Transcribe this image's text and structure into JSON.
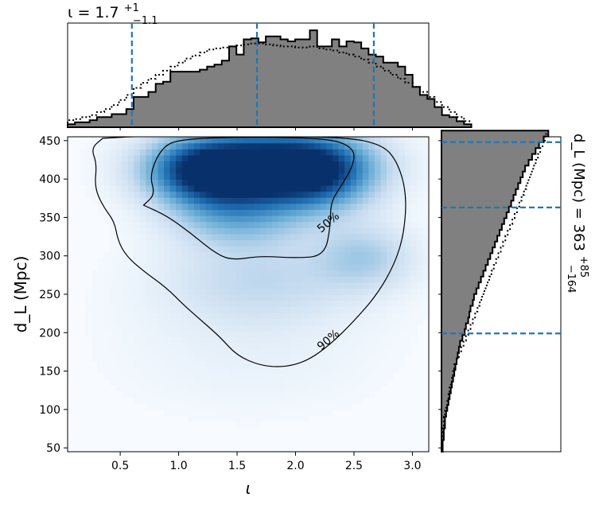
{
  "chart_data": [
    {
      "type": "heatmap",
      "title": "",
      "xlabel": "ι",
      "ylabel": "d_L (Mpc)",
      "xlim": [
        0.05,
        3.14
      ],
      "ylim": [
        45,
        455
      ],
      "x_ticks": [
        0.5,
        1.0,
        1.5,
        2.0,
        2.5,
        3.0
      ],
      "x_tick_labels": [
        "0.5",
        "1.0",
        "1.5",
        "2.0",
        "2.5",
        "3.0"
      ],
      "y_ticks": [
        50,
        100,
        150,
        200,
        250,
        300,
        350,
        400,
        450
      ],
      "y_tick_labels": [
        "50",
        "100",
        "150",
        "200",
        "250",
        "300",
        "350",
        "400",
        "450"
      ],
      "colormap": "Blues",
      "density_peaks": [
        {
          "x": 1.75,
          "y": 420,
          "weight": 1.0,
          "sx": 0.55,
          "sy": 32
        },
        {
          "x": 1.2,
          "y": 410,
          "weight": 0.7,
          "sx": 0.35,
          "sy": 30
        },
        {
          "x": 2.2,
          "y": 405,
          "weight": 0.6,
          "sx": 0.35,
          "sy": 35
        },
        {
          "x": 1.5,
          "y": 355,
          "weight": 0.45,
          "sx": 0.4,
          "sy": 30
        },
        {
          "x": 2.6,
          "y": 300,
          "weight": 0.3,
          "sx": 0.3,
          "sy": 30
        },
        {
          "x": 1.7,
          "y": 270,
          "weight": 0.25,
          "sx": 0.6,
          "sy": 40
        },
        {
          "x": 1.6,
          "y": 180,
          "weight": 0.08,
          "sx": 0.8,
          "sy": 60
        }
      ],
      "contours": [
        {
          "label": "50%",
          "label_at": {
            "x": 2.3,
            "y": 340
          },
          "path": [
            [
              0.7,
              366
            ],
            [
              0.8,
              380
            ],
            [
              0.75,
              405
            ],
            [
              0.85,
              440
            ],
            [
              1.0,
              452
            ],
            [
              1.6,
              455
            ],
            [
              2.3,
              453
            ],
            [
              2.5,
              440
            ],
            [
              2.5,
              420
            ],
            [
              2.4,
              393
            ],
            [
              2.3,
              370
            ],
            [
              2.3,
              340
            ],
            [
              2.25,
              300
            ],
            [
              2.0,
              297
            ],
            [
              1.7,
              300
            ],
            [
              1.45,
              294
            ],
            [
              1.3,
              305
            ],
            [
              1.1,
              330
            ],
            [
              0.9,
              352
            ],
            [
              0.7,
              366
            ]
          ]
        },
        {
          "label": "90%",
          "label_at": {
            "x": 2.3,
            "y": 187
          },
          "path": [
            [
              0.35,
              453
            ],
            [
              0.25,
              440
            ],
            [
              0.3,
              420
            ],
            [
              0.28,
              390
            ],
            [
              0.35,
              365
            ],
            [
              0.45,
              345
            ],
            [
              0.48,
              320
            ],
            [
              0.55,
              300
            ],
            [
              0.7,
              280
            ],
            [
              0.9,
              258
            ],
            [
              1.05,
              235
            ],
            [
              1.2,
              215
            ],
            [
              1.35,
              195
            ],
            [
              1.5,
              170
            ],
            [
              1.7,
              157
            ],
            [
              1.9,
              155
            ],
            [
              2.1,
              163
            ],
            [
              2.3,
              185
            ],
            [
              2.5,
              215
            ],
            [
              2.7,
              250
            ],
            [
              2.85,
              290
            ],
            [
              2.93,
              330
            ],
            [
              2.95,
              380
            ],
            [
              2.88,
              420
            ],
            [
              2.75,
              445
            ],
            [
              2.4,
              455
            ],
            [
              1.6,
              456
            ],
            [
              0.7,
              456
            ],
            [
              0.35,
              453
            ]
          ]
        }
      ]
    },
    {
      "type": "histogram",
      "title": "ι = 1.7",
      "title_main": "ι = 1.7",
      "title_sup": "+1",
      "title_sub": "−1.1",
      "xlim": [
        0.05,
        3.14
      ],
      "bin_width": 0.0628,
      "bin_start": 0.05,
      "heights": [
        0.03,
        0.05,
        0.05,
        0.07,
        0.1,
        0.1,
        0.13,
        0.13,
        0.18,
        0.3,
        0.3,
        0.35,
        0.43,
        0.45,
        0.55,
        0.55,
        0.55,
        0.55,
        0.57,
        0.6,
        0.62,
        0.66,
        0.8,
        0.72,
        0.87,
        0.88,
        0.84,
        0.9,
        0.9,
        0.87,
        0.85,
        0.87,
        0.87,
        0.96,
        0.8,
        0.8,
        0.87,
        0.8,
        0.85,
        0.84,
        0.78,
        0.72,
        0.7,
        0.64,
        0.64,
        0.6,
        0.52,
        0.4,
        0.32,
        0.28,
        0.2,
        0.12,
        0.1,
        0.06,
        0.03
      ],
      "reference_heights": [
        0.07,
        0.08,
        0.1,
        0.12,
        0.15,
        0.18,
        0.22,
        0.27,
        0.32,
        0.39,
        0.44,
        0.48,
        0.52,
        0.56,
        0.6,
        0.64,
        0.68,
        0.71,
        0.74,
        0.77,
        0.78,
        0.79,
        0.8,
        0.81,
        0.82,
        0.83,
        0.83,
        0.82,
        0.81,
        0.8,
        0.8,
        0.79,
        0.79,
        0.8,
        0.78,
        0.77,
        0.76,
        0.74,
        0.72,
        0.7,
        0.67,
        0.64,
        0.6,
        0.56,
        0.52,
        0.48,
        0.44,
        0.4,
        0.35,
        0.3,
        0.25,
        0.2,
        0.15,
        0.1,
        0.06
      ],
      "quantile_lines": [
        0.6,
        1.67,
        2.67
      ],
      "fill_color": "#808080",
      "line_color": "#1f77b4"
    },
    {
      "type": "histogram",
      "orientation": "horizontal",
      "label": "d_L (Mpc) = 363",
      "label_main": "d_L (Mpc) = 363",
      "label_sup": "+85",
      "label_sub": "−164",
      "ylim": [
        45,
        455
      ],
      "bin_width": 7.6,
      "bin_start": 45,
      "widths": [
        0.01,
        0.01,
        0.02,
        0.02,
        0.03,
        0.03,
        0.04,
        0.05,
        0.06,
        0.07,
        0.08,
        0.09,
        0.1,
        0.11,
        0.12,
        0.13,
        0.14,
        0.15,
        0.16,
        0.18,
        0.2,
        0.21,
        0.23,
        0.24,
        0.25,
        0.27,
        0.28,
        0.3,
        0.32,
        0.34,
        0.36,
        0.38,
        0.4,
        0.42,
        0.44,
        0.46,
        0.48,
        0.5,
        0.52,
        0.54,
        0.56,
        0.58,
        0.6,
        0.62,
        0.64,
        0.66,
        0.68,
        0.7,
        0.72,
        0.75,
        0.78,
        0.81,
        0.84,
        0.88,
        0.92
      ],
      "reference_widths": [
        0.0,
        0.0,
        0.01,
        0.01,
        0.02,
        0.02,
        0.03,
        0.04,
        0.05,
        0.06,
        0.07,
        0.08,
        0.09,
        0.1,
        0.11,
        0.13,
        0.15,
        0.17,
        0.19,
        0.21,
        0.23,
        0.25,
        0.27,
        0.29,
        0.31,
        0.33,
        0.35,
        0.37,
        0.39,
        0.41,
        0.43,
        0.45,
        0.47,
        0.49,
        0.51,
        0.53,
        0.55,
        0.57,
        0.59,
        0.61,
        0.63,
        0.65,
        0.67,
        0.69,
        0.71,
        0.73,
        0.75,
        0.77,
        0.79,
        0.81,
        0.83,
        0.85,
        0.87,
        0.89,
        0.9
      ],
      "quantile_lines": [
        199,
        363,
        448
      ],
      "fill_color": "#808080",
      "line_color": "#1f77b4"
    }
  ]
}
